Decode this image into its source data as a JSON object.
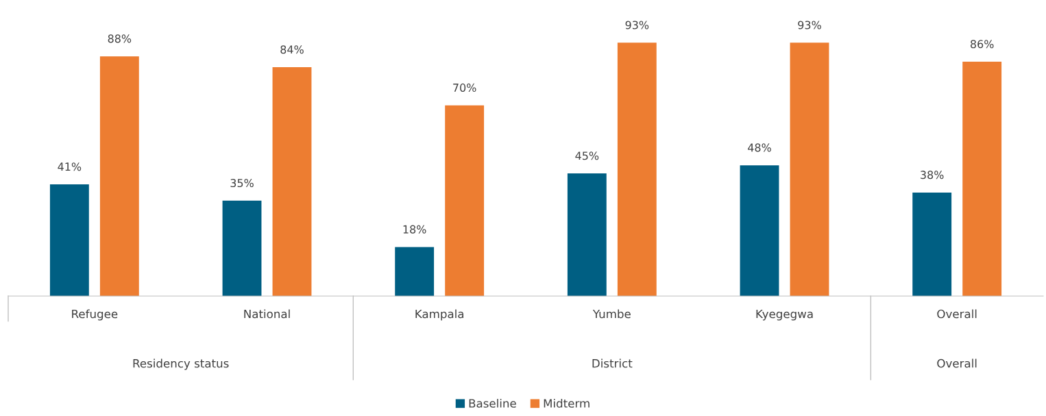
{
  "chart_data": {
    "type": "bar",
    "categories": [
      "Refugee",
      "National",
      "Kampala",
      "Yumbe",
      "Kyegegwa",
      "Overall"
    ],
    "series": [
      {
        "name": "Baseline",
        "color": "#005f83",
        "values": [
          41,
          35,
          18,
          45,
          48,
          38
        ],
        "value_labels": [
          "41%",
          "35%",
          "18%",
          "45%",
          "48%",
          "38%"
        ]
      },
      {
        "name": "Midterm",
        "color": "#ed7d31",
        "values": [
          88,
          84,
          70,
          93,
          93,
          86
        ],
        "value_labels": [
          "88%",
          "84%",
          "70%",
          "93%",
          "93%",
          "86%"
        ]
      }
    ],
    "annotations": [
      "Residency status",
      "District",
      "Overall"
    ],
    "legend": "bottom",
    "grid": false
  }
}
